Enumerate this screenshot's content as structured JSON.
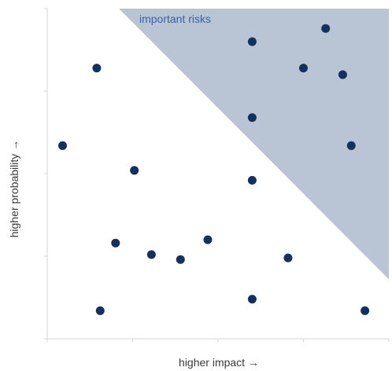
{
  "chart_data": {
    "type": "scatter",
    "xlabel": "higher impact →",
    "ylabel": "higher probability →",
    "xlim": [
      0,
      10
    ],
    "ylim": [
      0,
      10
    ],
    "grid": false,
    "axis_ticks_x": [
      0,
      2.5,
      5,
      7.5,
      10
    ],
    "axis_ticks_y": [
      0,
      2.5,
      5,
      7.5,
      10
    ],
    "region": {
      "label": "important risks",
      "polygon": [
        [
          2.1,
          10
        ],
        [
          10,
          10
        ],
        [
          10,
          1.8
        ]
      ]
    },
    "series": [
      {
        "x": [
          0.45,
          1.45,
          1.55,
          2.0,
          2.55,
          3.05,
          3.9,
          4.7,
          6.0,
          6.0,
          6.0,
          6.0,
          7.05,
          7.5,
          8.15,
          8.65,
          8.9,
          9.3
        ],
        "y": [
          5.85,
          8.2,
          0.85,
          2.9,
          5.1,
          2.55,
          2.4,
          3.0,
          9.0,
          6.7,
          4.8,
          1.2,
          2.45,
          8.2,
          9.4,
          8.0,
          5.85,
          0.85
        ]
      }
    ]
  },
  "colors": {
    "region_fill": "#b9c4d4",
    "region_text": "#3a62a0",
    "point_fill": "#14305e",
    "axis": "#d6d6d6",
    "text": "#3a3a3a"
  }
}
